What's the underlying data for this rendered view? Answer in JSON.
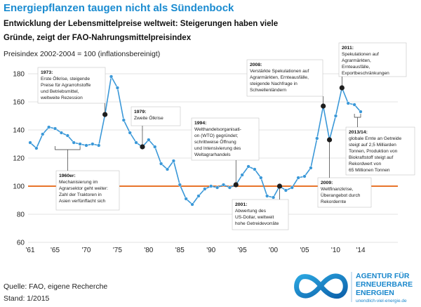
{
  "title": "Energiepflanzen taugen nicht als Sündenbock",
  "subtitle": [
    "Entwicklung der Lebensmittelpreise weltweit: Steigerungen haben viele",
    "Gründe, zeigt der FAO-Nahrungsmittelpreisindex"
  ],
  "source": [
    "Quelle: FAO, eigene Recherche",
    "Stand: 1/2015"
  ],
  "logo": {
    "icon": "infinity-icon",
    "lines": [
      "AGENTUR FÜR",
      "ERNEUERBARE",
      "ENERGIEN"
    ],
    "url": "unendlich-viel-energie.de"
  },
  "colors": {
    "title": "#1a8bd0",
    "series": "#3a98d8",
    "reference_line": "#e8742b",
    "highlight": "#1e1e1e",
    "grid": "#dadada",
    "annotation_border": "#c4c4c4",
    "logo": "#1987cc"
  },
  "chart_data": {
    "type": "line",
    "ylabel": "Preisindex 2002-2004 = 100 (inflationsbereinigt)",
    "ylim": [
      60,
      180
    ],
    "yticks": [
      60,
      80,
      100,
      120,
      140,
      160,
      180
    ],
    "xlim": [
      1961,
      2014
    ],
    "xticks": [
      1961,
      1965,
      1970,
      1975,
      1980,
      1985,
      1990,
      1995,
      2000,
      2005,
      2010,
      2014
    ],
    "xtick_labels": [
      "'61",
      "'65",
      "'70",
      "'75",
      "'80",
      "'85",
      "'90",
      "'95",
      "'00",
      "'05",
      "'10",
      "'14"
    ],
    "grid": true,
    "reference_line": {
      "y": 100
    },
    "series": [
      {
        "x": [
          1961,
          1962,
          1963,
          1964,
          1965,
          1966,
          1967,
          1968,
          1969,
          1970,
          1971,
          1972,
          1973,
          1974,
          1975,
          1976,
          1977,
          1978,
          1979,
          1980,
          1981,
          1982,
          1983,
          1984,
          1985,
          1986,
          1987,
          1988,
          1989,
          1990,
          1991,
          1992,
          1993,
          1994,
          1995,
          1996,
          1997,
          1998,
          1999,
          2000,
          2001,
          2002,
          2003,
          2004,
          2005,
          2006,
          2007,
          2008,
          2009,
          2010,
          2011,
          2012,
          2013,
          2014
        ],
        "y": [
          131,
          127,
          137,
          142,
          141,
          138,
          136,
          131,
          130,
          129,
          130,
          129,
          151,
          178,
          170,
          147,
          138,
          131,
          128,
          133,
          128,
          116,
          112,
          118,
          101,
          91,
          87,
          93,
          98,
          100,
          99,
          101,
          99,
          101,
          108,
          114,
          112,
          106,
          93,
          92,
          100,
          97,
          99,
          106,
          107,
          113,
          134,
          157,
          133,
          150,
          170,
          159,
          158,
          153
        ]
      }
    ],
    "annotations": [
      {
        "label": "1960er:",
        "x_range": [
          1965,
          1969
        ],
        "text": [
          "Mechanisierung im",
          "Agrarsektor geht weiter:",
          "Zahl der Traktoren in",
          "Asien verfünffacht sich"
        ]
      },
      {
        "label": "1973:",
        "x": 1973,
        "text": [
          "Erste Ölkrise, steigende",
          "Preise für Agrarrohstoffe",
          "und Betriebsmittel,",
          "weltweite Rezession"
        ]
      },
      {
        "label": "1979:",
        "x": 1979,
        "text": [
          "Zweite Ölkrise"
        ]
      },
      {
        "label": "1994:",
        "x": 1994,
        "text": [
          "Welthandelsorganisati-",
          "on (WTO) gegründet;",
          "schrittweise Öffnung",
          "und Intensivierung des",
          "Weltagrarhandels"
        ]
      },
      {
        "label": "2001:",
        "x": 2001,
        "text": [
          "Abwertung des",
          "US-Dollar, weltweit",
          "hohe Getreidevorräte"
        ]
      },
      {
        "label": "2008:",
        "x": 2008,
        "text": [
          "Verstärkte Spekulationen auf",
          "Agrarmärkten, Ernteausfälle,",
          "steigende Nachfrage in",
          "Schwellenländern"
        ]
      },
      {
        "label": "2009:",
        "x": 2009,
        "text": [
          "Weltfinanzkrise,",
          "Überangebot durch",
          "Rekordernte"
        ]
      },
      {
        "label": "2011:",
        "x": 2011,
        "text": [
          "Spekulationen auf",
          "Agrarmärkten,",
          "Ernteausfälle,",
          "Exportbeschränkungen"
        ]
      },
      {
        "label": "2013/14:",
        "x_range": [
          2013,
          2014
        ],
        "text": [
          "globale Ernte an Getreide",
          "steigt auf 2,5 Milliarden",
          "Tonnen, Produktion von",
          "Biokraftstoff steigt auf",
          "Rekordwert von",
          "65 Millionen Tonnen"
        ]
      }
    ]
  }
}
